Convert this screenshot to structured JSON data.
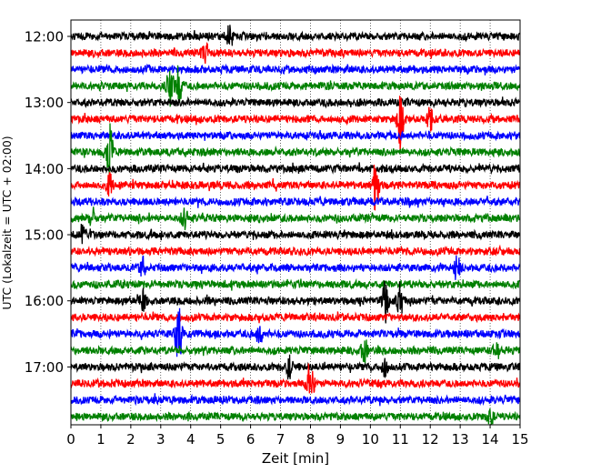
{
  "chart_data": {
    "type": "line",
    "title": "",
    "xlabel": "Zeit  [min]",
    "ylabel": "UTC (Lokalzeit = UTC + 02:00)",
    "xlim": [
      0,
      15
    ],
    "x_ticks": [
      "0",
      "1",
      "2",
      "3",
      "4",
      "5",
      "6",
      "7",
      "8",
      "9",
      "10",
      "11",
      "12",
      "13",
      "14",
      "15"
    ],
    "y_time_range": [
      "12:00",
      "17:45"
    ],
    "y_tick_labels": [
      "12:00",
      "13:00",
      "14:00",
      "15:00",
      "16:00",
      "17:00"
    ],
    "row_interval_min": 15,
    "grid": "vertical dotted lines at each minute",
    "legend": "none",
    "color_cycle": [
      "#000000",
      "#ff0000",
      "#0000ff",
      "#008000"
    ],
    "rows": [
      {
        "start": "12:00",
        "events": [
          {
            "t": 5.3,
            "amp": 1.2
          }
        ]
      },
      {
        "start": "12:15",
        "events": [
          {
            "t": 4.5,
            "amp": 1.0
          }
        ]
      },
      {
        "start": "12:30",
        "events": []
      },
      {
        "start": "12:45",
        "events": [
          {
            "t": 3.3,
            "amp": 3.0
          },
          {
            "t": 3.6,
            "amp": 2.0
          }
        ]
      },
      {
        "start": "13:00",
        "events": []
      },
      {
        "start": "13:15",
        "events": [
          {
            "t": 11.0,
            "amp": 3.0
          },
          {
            "t": 12.0,
            "amp": 1.0
          }
        ]
      },
      {
        "start": "13:30",
        "events": []
      },
      {
        "start": "13:45",
        "events": [
          {
            "t": 1.3,
            "amp": 3.0
          }
        ]
      },
      {
        "start": "14:00",
        "events": []
      },
      {
        "start": "14:15",
        "events": [
          {
            "t": 10.2,
            "amp": 3.0
          },
          {
            "t": 1.3,
            "amp": 1.0
          }
        ]
      },
      {
        "start": "14:30",
        "events": []
      },
      {
        "start": "14:45",
        "events": [
          {
            "t": 0.7,
            "amp": 1.0
          },
          {
            "t": 3.8,
            "amp": 1.0
          }
        ]
      },
      {
        "start": "15:00",
        "events": [
          {
            "t": 0.4,
            "amp": 1.0
          }
        ]
      },
      {
        "start": "15:15",
        "events": []
      },
      {
        "start": "15:30",
        "events": [
          {
            "t": 2.4,
            "amp": 1.0
          },
          {
            "t": 12.9,
            "amp": 1.0
          }
        ]
      },
      {
        "start": "15:45",
        "events": []
      },
      {
        "start": "16:00",
        "events": [
          {
            "t": 10.5,
            "amp": 2.0
          },
          {
            "t": 11.0,
            "amp": 2.0
          },
          {
            "t": 2.4,
            "amp": 1.0
          }
        ]
      },
      {
        "start": "16:15",
        "events": []
      },
      {
        "start": "16:30",
        "events": [
          {
            "t": 3.6,
            "amp": 3.0
          },
          {
            "t": 6.3,
            "amp": 1.0
          }
        ]
      },
      {
        "start": "16:45",
        "events": [
          {
            "t": 9.8,
            "amp": 1.2
          },
          {
            "t": 14.2,
            "amp": 1.0
          }
        ]
      },
      {
        "start": "17:00",
        "events": [
          {
            "t": 7.3,
            "amp": 1.2
          },
          {
            "t": 10.5,
            "amp": 1.0
          }
        ]
      },
      {
        "start": "17:15",
        "events": [
          {
            "t": 8.0,
            "amp": 3.0
          }
        ]
      },
      {
        "start": "17:30",
        "events": []
      },
      {
        "start": "17:45",
        "events": [
          {
            "t": 14.0,
            "amp": 1.0
          }
        ]
      }
    ]
  }
}
